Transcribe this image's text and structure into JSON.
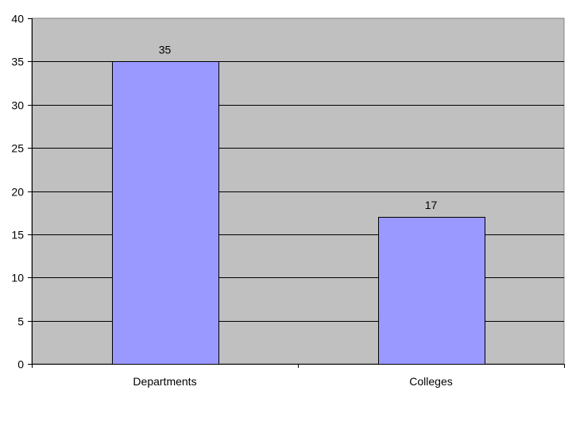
{
  "chart_data": {
    "type": "bar",
    "title": "",
    "xlabel": "",
    "ylabel": "",
    "categories": [
      "Departments",
      "Colleges"
    ],
    "values": [
      35,
      17
    ],
    "data_labels": [
      "35",
      "17"
    ],
    "ylim": [
      0,
      40
    ],
    "yticks": [
      0,
      5,
      10,
      15,
      20,
      25,
      30,
      35,
      40
    ],
    "grid": true,
    "legend": "none",
    "colors": {
      "bar": "#9999ff",
      "plot_background": "#c0c0c0",
      "gridline": "#000000"
    }
  }
}
